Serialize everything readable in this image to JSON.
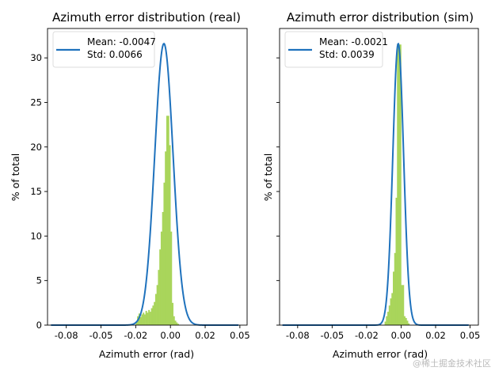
{
  "chart_data": [
    {
      "type": "bar",
      "title": "Azimuth error distribution (real)",
      "xlabel": "Azimuth error (rad)",
      "ylabel": "% of total",
      "xlim": [
        -0.0885,
        0.0552
      ],
      "ylim": [
        0,
        33.3
      ],
      "xticks": [
        -0.075,
        -0.05,
        -0.025,
        0,
        0.025,
        0.05
      ],
      "xtick_labels": [
        "-0.08",
        "-0.05",
        "-0.02",
        "0.00",
        "0.02",
        "0.05"
      ],
      "yticks": [
        0,
        5,
        10,
        15,
        20,
        25,
        30
      ],
      "ytick_labels": [
        "0",
        "5",
        "10",
        "15",
        "20",
        "25",
        "30"
      ],
      "grid": false,
      "legend_position": "top-left",
      "histogram": {
        "bin_width": 0.001,
        "bin_starts": [
          -0.025,
          -0.024,
          -0.023,
          -0.022,
          -0.021,
          -0.02,
          -0.019,
          -0.018,
          -0.017,
          -0.016,
          -0.015,
          -0.014,
          -0.013,
          -0.012,
          -0.011,
          -0.01,
          -0.009,
          -0.008,
          -0.007,
          -0.006,
          -0.005,
          -0.004,
          -0.003,
          -0.002,
          -0.001,
          0.0,
          0.001,
          0.002,
          0.003,
          0.004,
          0.005
        ],
        "values": [
          0.3,
          1.0,
          1.3,
          0.9,
          1.2,
          1.4,
          1.2,
          1.6,
          1.4,
          1.7,
          1.5,
          1.9,
          2.2,
          2.6,
          3.5,
          4.5,
          6.2,
          8.5,
          10.5,
          12.7,
          16.0,
          19.5,
          23.5,
          23.5,
          20.2,
          10.5,
          2.5,
          1.0,
          0.5,
          0.3,
          0.15
        ],
        "color": "#a9d55b"
      },
      "series": [
        {
          "name": "Mean: -0.0047\nStd: 0.0066",
          "type": "gaussian",
          "mean": -0.0047,
          "std": 0.0066,
          "peak": 31.6,
          "x_range": [
            -0.086,
            0.049
          ],
          "color": "#1f72bd"
        }
      ],
      "legend": [
        "Mean: -0.0047",
        "Std: 0.0066"
      ]
    },
    {
      "type": "bar",
      "title": "Azimuth error distribution (sim)",
      "xlabel": "Azimuth error (rad)",
      "ylabel": "% of total",
      "xlim": [
        -0.0881,
        0.056
      ],
      "ylim": [
        0,
        33.3
      ],
      "xticks": [
        -0.075,
        -0.05,
        -0.025,
        0,
        0.025,
        0.05
      ],
      "xtick_labels": [
        "-0.08",
        "-0.05",
        "-0.02",
        "0.00",
        "0.02",
        "0.05"
      ],
      "yticks": [
        0,
        5,
        10,
        15,
        20,
        25,
        30
      ],
      "ytick_labels": [],
      "grid": false,
      "legend_position": "top-left",
      "histogram": {
        "bin_width": 0.001,
        "bin_starts": [
          -0.012,
          -0.011,
          -0.01,
          -0.009,
          -0.008,
          -0.007,
          -0.006,
          -0.005,
          -0.004,
          -0.003,
          -0.002,
          -0.001,
          0.0,
          0.001,
          0.002,
          0.003,
          0.004,
          0.005
        ],
        "values": [
          0.4,
          1.0,
          1.5,
          2.2,
          3.0,
          3.6,
          6.0,
          8.1,
          14.3,
          31.5,
          31.5,
          31.5,
          4.5,
          4.5,
          1.0,
          0.8,
          0.5,
          0.2
        ],
        "color": "#a9d55b"
      },
      "series": [
        {
          "name": "Mean: -0.0021\nStd: 0.0039",
          "type": "gaussian",
          "mean": -0.0021,
          "std": 0.0039,
          "peak": 31.6,
          "x_range": [
            -0.086,
            0.049
          ],
          "color": "#1f72bd"
        }
      ],
      "legend": [
        "Mean: -0.0021",
        "Std: 0.0039"
      ]
    }
  ],
  "watermark": "@稀土掘金技术社区"
}
